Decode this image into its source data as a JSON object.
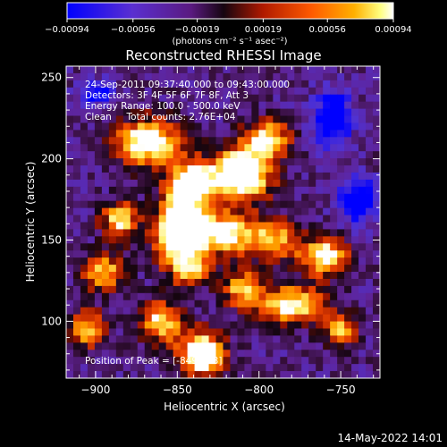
{
  "chart_data": {
    "type": "heatmap",
    "title": "Reconstructed RHESSI Image",
    "xlabel": "Heliocentric X (arcsec)",
    "ylabel": "Heliocentric Y (arcsec)",
    "xlim": [
      -918,
      -726
    ],
    "ylim": [
      65,
      257
    ],
    "x_ticks": [
      -900,
      -850,
      -800,
      -750
    ],
    "y_ticks": [
      100,
      150,
      200,
      250
    ],
    "x_tick_labels": [
      "−900",
      "−850",
      "−800",
      "−750"
    ],
    "y_tick_labels": [
      "100",
      "150",
      "200",
      "250"
    ],
    "annotations": [
      "24-Sep-2011 09:37:40.000 to 09:43:00.000",
      "Detectors: 3F 4F 5F 6F 7F 8F, Att 3",
      "Energy Range: 100.0 - 500.0 keV",
      "Clean     Total counts: 2.76E+04"
    ],
    "peak_label": "Position of Peak = [-849,153]",
    "peak_position": [
      -849,
      153
    ],
    "colorbar": {
      "tick_labels": [
        "−0.00094",
        "−0.00056",
        "−0.00019",
        "0.00019",
        "0.00056",
        "0.00094"
      ],
      "ticks": [
        -0.00094,
        -0.00056,
        -0.00019,
        0.00019,
        0.00056,
        0.00094
      ],
      "range": [
        -0.00094,
        0.00094
      ],
      "units_label": "(photons cm⁻² s⁻¹ asec⁻²)",
      "colors": [
        "#0000ff",
        "#6a2ab8",
        "#1a0a10",
        "#a01000",
        "#ff4000",
        "#ff9c00",
        "#ffff70",
        "#ffffff"
      ]
    },
    "grid": false,
    "sources": [
      {
        "x": -848,
        "y": 155,
        "sx": 10,
        "sy": 15,
        "amp": 1.05
      },
      {
        "x": -842,
        "y": 184,
        "sx": 9,
        "sy": 9,
        "amp": 0.85
      },
      {
        "x": -812,
        "y": 190,
        "sx": 13,
        "sy": 11,
        "amp": 0.95
      },
      {
        "x": -868,
        "y": 210,
        "sx": 14,
        "sy": 10,
        "amp": 0.75
      },
      {
        "x": -820,
        "y": 154,
        "sx": 12,
        "sy": 9,
        "amp": 0.7
      },
      {
        "x": -795,
        "y": 212,
        "sx": 10,
        "sy": 8,
        "amp": 0.65
      },
      {
        "x": -885,
        "y": 162,
        "sx": 8,
        "sy": 8,
        "amp": 0.6
      },
      {
        "x": -790,
        "y": 150,
        "sx": 10,
        "sy": 9,
        "amp": 0.55
      },
      {
        "x": -760,
        "y": 140,
        "sx": 10,
        "sy": 8,
        "amp": 0.7
      },
      {
        "x": -780,
        "y": 110,
        "sx": 14,
        "sy": 8,
        "amp": 0.7
      },
      {
        "x": -895,
        "y": 130,
        "sx": 9,
        "sy": 8,
        "amp": 0.55
      },
      {
        "x": -860,
        "y": 100,
        "sx": 9,
        "sy": 9,
        "amp": 0.6
      },
      {
        "x": -835,
        "y": 80,
        "sx": 10,
        "sy": 10,
        "amp": 0.8
      },
      {
        "x": -905,
        "y": 95,
        "sx": 7,
        "sy": 8,
        "amp": 0.55
      },
      {
        "x": -810,
        "y": 120,
        "sx": 8,
        "sy": 8,
        "amp": 0.55
      },
      {
        "x": -750,
        "y": 95,
        "sx": 7,
        "sy": 7,
        "amp": 0.5
      },
      {
        "x": -840,
        "y": 130,
        "sx": 8,
        "sy": 6,
        "amp": 0.45
      },
      {
        "x": -755,
        "y": 225,
        "sx": 8,
        "sy": 12,
        "amp": -0.55
      },
      {
        "x": -740,
        "y": 175,
        "sx": 8,
        "sy": 10,
        "amp": -0.5
      },
      {
        "x": -900,
        "y": 240,
        "sx": 8,
        "sy": 6,
        "amp": -0.35
      }
    ]
  },
  "footer": {
    "timestamp": "14-May-2022 14:01"
  }
}
